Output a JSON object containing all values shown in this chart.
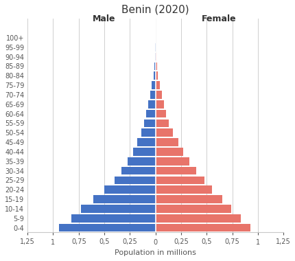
{
  "title": "Benin (2020)",
  "xlabel": "Population in millions",
  "male_label": "Male",
  "female_label": "Female",
  "age_groups": [
    "0-4",
    "5-9",
    "10-14",
    "15-19",
    "20-24",
    "25-29",
    "30-34",
    "35-39",
    "40-44",
    "45-49",
    "50-54",
    "55-59",
    "60-64",
    "65-69",
    "70-74",
    "75-79",
    "80-84",
    "85-89",
    "90-94",
    "95-99",
    "100+"
  ],
  "male_values": [
    0.94,
    0.82,
    0.73,
    0.61,
    0.5,
    0.4,
    0.33,
    0.27,
    0.22,
    0.18,
    0.14,
    0.11,
    0.09,
    0.07,
    0.05,
    0.035,
    0.02,
    0.01,
    0.005,
    0.002,
    0.001
  ],
  "female_values": [
    0.93,
    0.83,
    0.74,
    0.65,
    0.55,
    0.48,
    0.4,
    0.33,
    0.27,
    0.22,
    0.17,
    0.13,
    0.1,
    0.08,
    0.06,
    0.042,
    0.025,
    0.013,
    0.006,
    0.002,
    0.001
  ],
  "male_color": "#4472C4",
  "female_color": "#E8746A",
  "xlim": 1.25,
  "xtick_vals": [
    -1.25,
    -1.0,
    -0.75,
    -0.5,
    -0.25,
    0,
    0.25,
    0.5,
    0.75,
    1.0,
    1.25
  ],
  "xtick_labels": [
    "1,25",
    "1",
    "0,75",
    "0,5",
    "0,25",
    "0",
    "0,25",
    "0,5",
    "0,75",
    "1",
    "1,25"
  ],
  "background_color": "#FFFFFF",
  "grid_color": "#C8C8C8",
  "title_fontsize": 11,
  "label_fontsize": 8,
  "tick_fontsize": 7,
  "gender_label_fontsize": 9
}
